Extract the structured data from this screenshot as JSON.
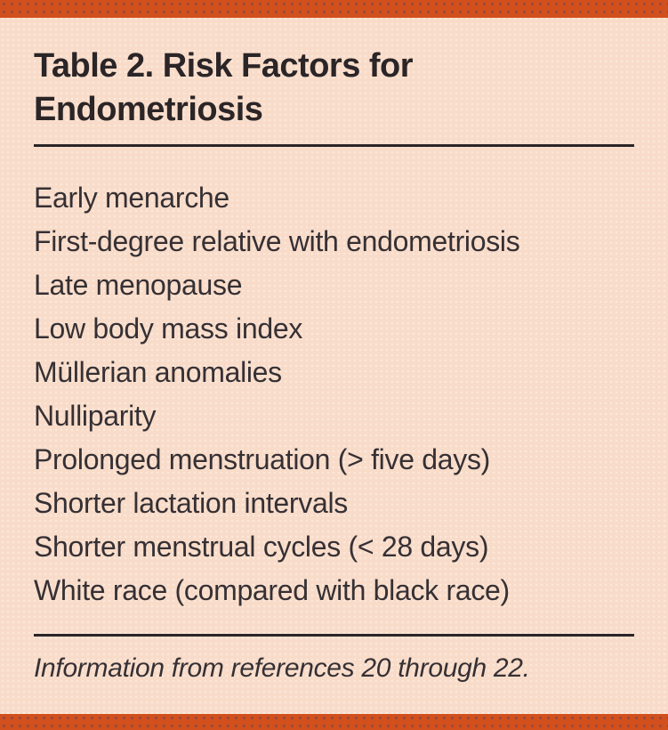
{
  "table": {
    "title": "Table 2. Risk Factors for Endometriosis",
    "items": [
      "Early menarche",
      "First-degree relative with endometriosis",
      "Late menopause",
      "Low body mass index",
      "Müllerian anomalies",
      "Nulliparity",
      "Prolonged menstruation (> five days)",
      "Shorter lactation intervals",
      "Shorter menstrual cycles (< 28 days)",
      "White race (compared with black race)"
    ],
    "footnote": "Information from references 20 through 22."
  },
  "chart_data": {
    "type": "table",
    "title": "Table 2. Risk Factors for Endometriosis",
    "rows": [
      [
        "Early menarche"
      ],
      [
        "First-degree relative with endometriosis"
      ],
      [
        "Late menopause"
      ],
      [
        "Low body mass index"
      ],
      [
        "Müllerian anomalies"
      ],
      [
        "Nulliparity"
      ],
      [
        "Prolonged menstruation (> five days)"
      ],
      [
        "Shorter lactation intervals"
      ],
      [
        "Shorter menstrual cycles (< 28 days)"
      ],
      [
        "White race (compared with black race)"
      ]
    ],
    "annotations": [
      "Information from references 20 through 22."
    ]
  },
  "colors": {
    "accent_bar": "#d1501e",
    "background": "#f8dcc9",
    "title_text": "#2b2527",
    "body_text": "#363034",
    "rule": "#2b2527"
  }
}
